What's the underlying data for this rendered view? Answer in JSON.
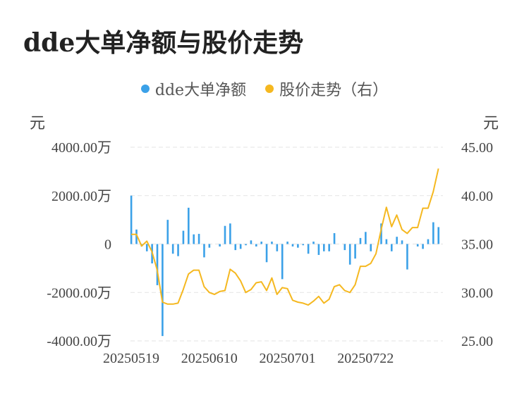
{
  "chart_data": {
    "type": "bar+line",
    "title": "dde大单净额与股价走势",
    "legend": [
      {
        "name": "dde大单净额",
        "color": "#3ba1e8"
      },
      {
        "name": "股价走势（右）",
        "color": "#f5b820"
      }
    ],
    "left_unit": "元",
    "right_unit": "元",
    "left_ticks": [
      "4000.00万",
      "2000.00万",
      "0",
      "-2000.00万",
      "-4000.00万"
    ],
    "right_ticks": [
      "45.00",
      "40.00",
      "35.00",
      "30.00",
      "25.00"
    ],
    "x_tick_labels": [
      "20250519",
      "20250610",
      "20250701",
      "20250722"
    ],
    "left_ylim": [
      -4000,
      4000
    ],
    "right_ylim": [
      25,
      45
    ],
    "grid": true,
    "series": [
      {
        "name": "dde大单净额",
        "type": "bar",
        "unit": "万",
        "values": [
          2000,
          600,
          -100,
          -300,
          -800,
          -1700,
          -3800,
          1000,
          -400,
          -500,
          550,
          1500,
          400,
          420,
          -550,
          -150,
          0,
          -100,
          750,
          850,
          -250,
          -200,
          -50,
          150,
          -100,
          100,
          -750,
          100,
          -300,
          -1450,
          100,
          -100,
          -150,
          -50,
          -400,
          100,
          -450,
          -300,
          -300,
          450,
          0,
          -250,
          -850,
          -600,
          250,
          500,
          -300,
          0,
          850,
          200,
          -300,
          300,
          150,
          -1050,
          0,
          -100,
          -200,
          200,
          900,
          700
        ]
      },
      {
        "name": "股价走势（右）",
        "type": "line",
        "values": [
          36.0,
          36.0,
          34.8,
          35.3,
          34.2,
          32.3,
          29.0,
          28.8,
          28.8,
          28.9,
          30.3,
          31.9,
          32.3,
          32.3,
          30.6,
          30.0,
          29.8,
          30.1,
          30.2,
          32.4,
          32.0,
          31.2,
          30.0,
          30.3,
          31.0,
          31.1,
          30.2,
          31.5,
          29.8,
          30.5,
          30.4,
          29.2,
          29.0,
          28.9,
          28.7,
          29.1,
          29.6,
          28.9,
          29.3,
          30.6,
          30.8,
          30.2,
          30.0,
          30.8,
          32.7,
          32.7,
          33.0,
          34.0,
          36.5,
          38.8,
          36.8,
          38.0,
          36.5,
          36.1,
          36.7,
          36.7,
          38.7,
          38.7,
          40.4,
          42.8
        ]
      }
    ]
  }
}
